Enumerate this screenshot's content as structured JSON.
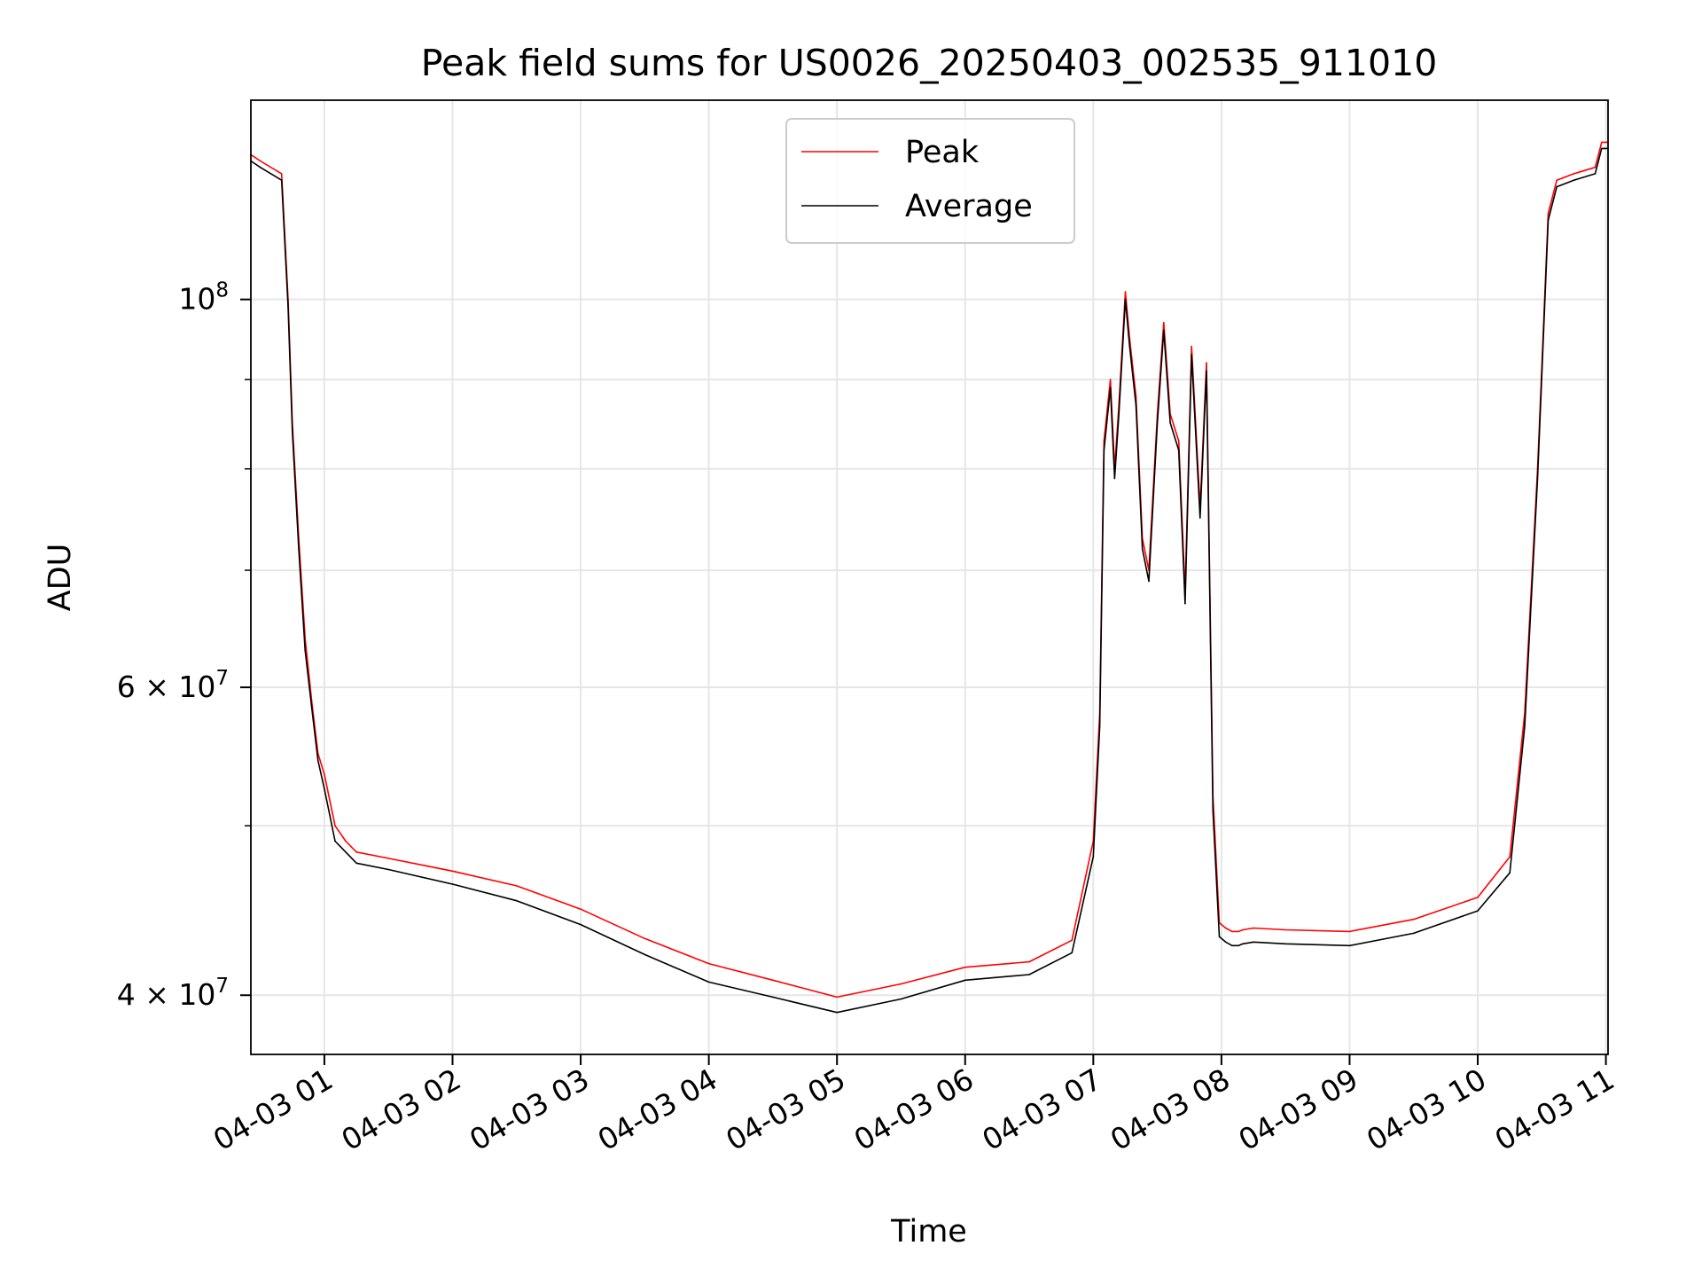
{
  "chart_data": {
    "type": "line",
    "title": "Peak field sums for US0026_20250403_002535_911010",
    "xlabel": "Time",
    "ylabel": "ADU",
    "y_scale": "log",
    "ylim": [
      37000000,
      130000000
    ],
    "xlim": [
      "2025-04-03T00:25:35",
      "2025-04-03T11:01:00"
    ],
    "grid": true,
    "legend": "upper center",
    "x_ticks": [
      {
        "value": "2025-04-03T01:00",
        "label": "04-03 01"
      },
      {
        "value": "2025-04-03T02:00",
        "label": "04-03 02"
      },
      {
        "value": "2025-04-03T03:00",
        "label": "04-03 03"
      },
      {
        "value": "2025-04-03T04:00",
        "label": "04-03 04"
      },
      {
        "value": "2025-04-03T05:00",
        "label": "04-03 05"
      },
      {
        "value": "2025-04-03T06:00",
        "label": "04-03 06"
      },
      {
        "value": "2025-04-03T07:00",
        "label": "04-03 07"
      },
      {
        "value": "2025-04-03T08:00",
        "label": "04-03 08"
      },
      {
        "value": "2025-04-03T09:00",
        "label": "04-03 09"
      },
      {
        "value": "2025-04-03T10:00",
        "label": "04-03 10"
      },
      {
        "value": "2025-04-03T11:00",
        "label": "04-03 11"
      }
    ],
    "y_ticks_major": [
      {
        "value": 40000000,
        "base": "4 × 10",
        "exp": "7"
      },
      {
        "value": 60000000,
        "base": "6 × 10",
        "exp": "7"
      },
      {
        "value": 100000000,
        "base": "10",
        "exp": "8"
      }
    ],
    "y_ticks_minor": [
      50000000,
      70000000,
      80000000,
      90000000
    ],
    "x": [
      "2025-04-03T00:25:35",
      "2025-04-03T00:30",
      "2025-04-03T00:40",
      "2025-04-03T00:43",
      "2025-04-03T00:45",
      "2025-04-03T00:48",
      "2025-04-03T00:51",
      "2025-04-03T00:54",
      "2025-04-03T00:57",
      "2025-04-03T01:00",
      "2025-04-03T01:05",
      "2025-04-03T01:10",
      "2025-04-03T01:15",
      "2025-04-03T01:30",
      "2025-04-03T02:00",
      "2025-04-03T02:30",
      "2025-04-03T03:00",
      "2025-04-03T03:30",
      "2025-04-03T04:00",
      "2025-04-03T04:30",
      "2025-04-03T05:00",
      "2025-04-03T05:30",
      "2025-04-03T06:00",
      "2025-04-03T06:30",
      "2025-04-03T06:50",
      "2025-04-03T07:00",
      "2025-04-03T07:03",
      "2025-04-03T07:05",
      "2025-04-03T07:08",
      "2025-04-03T07:10",
      "2025-04-03T07:12",
      "2025-04-03T07:15",
      "2025-04-03T07:17",
      "2025-04-03T07:20",
      "2025-04-03T07:23",
      "2025-04-03T07:26",
      "2025-04-03T07:30",
      "2025-04-03T07:33",
      "2025-04-03T07:36",
      "2025-04-03T07:40",
      "2025-04-03T07:43",
      "2025-04-03T07:46",
      "2025-04-03T07:50",
      "2025-04-03T07:53",
      "2025-04-03T07:56",
      "2025-04-03T07:59",
      "2025-04-03T08:02",
      "2025-04-03T08:05",
      "2025-04-03T08:08",
      "2025-04-03T08:10",
      "2025-04-03T08:15",
      "2025-04-03T08:30",
      "2025-04-03T09:00",
      "2025-04-03T09:30",
      "2025-04-03T10:00",
      "2025-04-03T10:15",
      "2025-04-03T10:22",
      "2025-04-03T10:28",
      "2025-04-03T10:33",
      "2025-04-03T10:37",
      "2025-04-03T10:45",
      "2025-04-03T10:55",
      "2025-04-03T10:58",
      "2025-04-03T11:00",
      "2025-04-03T11:01"
    ],
    "series": [
      {
        "name": "Peak",
        "color": "#ff0000",
        "values": [
          121000000,
          120000000,
          118000000,
          100000000,
          85000000,
          73000000,
          64000000,
          59000000,
          55000000,
          53500000,
          50000000,
          49000000,
          48300000,
          47900000,
          47100000,
          46200000,
          44800000,
          43100000,
          41700000,
          40800000,
          39900000,
          40600000,
          41500000,
          41800000,
          43000000,
          49000000,
          58000000,
          83000000,
          90000000,
          80000000,
          87000000,
          101000000,
          95000000,
          88000000,
          73000000,
          70000000,
          86000000,
          97000000,
          86000000,
          83000000,
          68000000,
          94000000,
          76000000,
          92000000,
          52000000,
          44000000,
          43700000,
          43500000,
          43500000,
          43600000,
          43700000,
          43600000,
          43500000,
          44200000,
          45500000,
          48000000,
          58000000,
          80000000,
          112000000,
          117000000,
          118000000,
          119000000,
          123000000,
          123000000,
          123000000
        ]
      },
      {
        "name": "Average",
        "color": "#000000",
        "values": [
          120000000,
          119000000,
          117000000,
          99000000,
          84000000,
          72000000,
          63000000,
          58500000,
          54500000,
          52500000,
          49000000,
          48300000,
          47600000,
          47200000,
          46300000,
          45300000,
          43900000,
          42200000,
          40700000,
          39900000,
          39100000,
          39800000,
          40800000,
          41100000,
          42300000,
          48000000,
          57000000,
          82000000,
          89000000,
          79000000,
          86000000,
          100000000,
          94000000,
          87000000,
          72000000,
          69000000,
          85000000,
          96000000,
          85000000,
          82000000,
          67000000,
          93000000,
          75000000,
          91000000,
          51000000,
          43200000,
          42900000,
          42700000,
          42700000,
          42800000,
          42900000,
          42800000,
          42700000,
          43400000,
          44700000,
          47000000,
          57000000,
          79000000,
          111000000,
          116000000,
          117000000,
          118000000,
          122000000,
          122000000,
          122000000
        ]
      }
    ]
  }
}
